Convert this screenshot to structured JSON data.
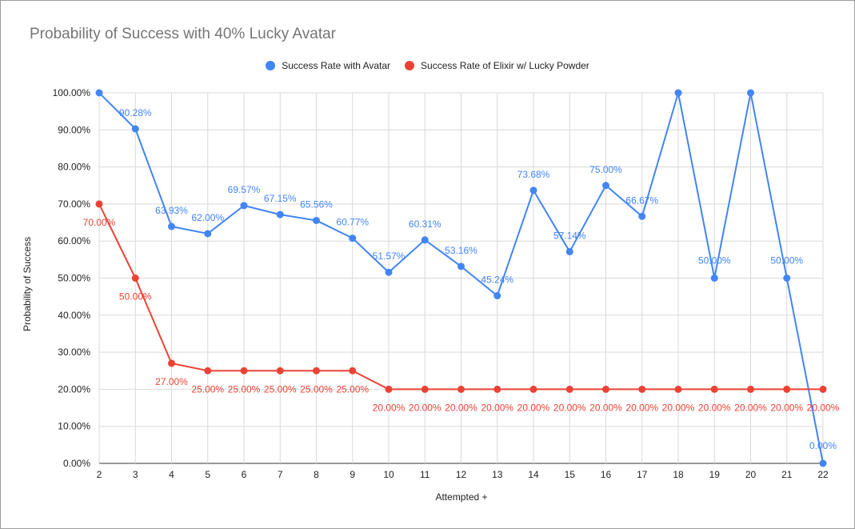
{
  "chart_data": {
    "type": "line",
    "title": "Probability of Success with 40% Lucky Avatar",
    "xlabel": "Attempted +",
    "ylabel": "Probability of Success",
    "x": [
      2,
      3,
      4,
      5,
      6,
      7,
      8,
      9,
      10,
      11,
      12,
      13,
      14,
      15,
      16,
      17,
      18,
      19,
      20,
      21,
      22
    ],
    "ylim": [
      0,
      100
    ],
    "y_ticks": [
      "0.00%",
      "10.00%",
      "20.00%",
      "30.00%",
      "40.00%",
      "50.00%",
      "60.00%",
      "70.00%",
      "80.00%",
      "90.00%",
      "100.00%"
    ],
    "grid": true,
    "legend_position": "top",
    "series": [
      {
        "name": "Success Rate with Avatar",
        "color": "#4285f4",
        "values": [
          100,
          90.28,
          63.93,
          62,
          69.57,
          67.15,
          65.56,
          60.77,
          51.57,
          60.31,
          53.16,
          45.24,
          73.68,
          57.14,
          75,
          66.67,
          100,
          50,
          100,
          50,
          0
        ],
        "labels": [
          "",
          "90.28%",
          "63.93%",
          "62.00%",
          "69.57%",
          "67.15%",
          "65.56%",
          "60.77%",
          "51.57%",
          "60.31%",
          "53.16%",
          "45.24%",
          "73.68%",
          "57.14%",
          "75.00%",
          "66.67%",
          "",
          "50.00%",
          "",
          "50.00%",
          "0.00%"
        ]
      },
      {
        "name": "Success Rate of Elixir w/ Lucky Powder",
        "color": "#ea4335",
        "values": [
          70,
          50,
          27,
          25,
          25,
          25,
          25,
          25,
          20,
          20,
          20,
          20,
          20,
          20,
          20,
          20,
          20,
          20,
          20,
          20,
          20
        ],
        "labels": [
          "70.00%",
          "50.00%",
          "27.00%",
          "25.00%",
          "25.00%",
          "25.00%",
          "25.00%",
          "25.00%",
          "20.00%",
          "20.00%",
          "20.00%",
          "20.00%",
          "20.00%",
          "20.00%",
          "20.00%",
          "20.00%",
          "20.00%",
          "20.00%",
          "20.00%",
          "20.00%",
          "20.00%"
        ]
      }
    ]
  }
}
